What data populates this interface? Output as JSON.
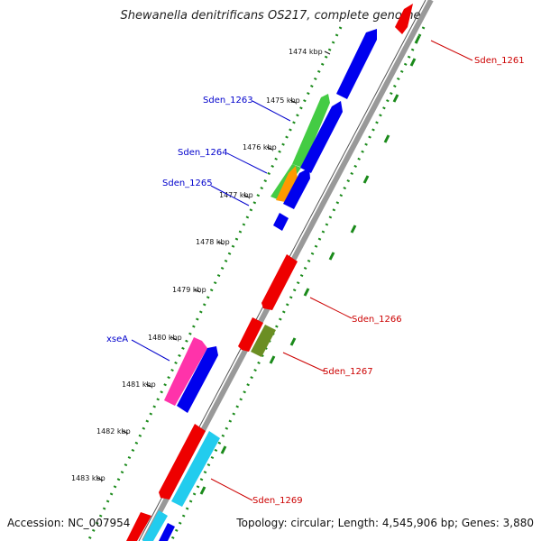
{
  "title": "Shewanella denitrificans OS217, complete genome",
  "footer": {
    "accession": "Accession: NC_007954",
    "summary": "Topology: circular; Length: 4,545,906 bp; Genes: 3,880"
  },
  "ticks": [
    "1474 kbp",
    "1475 kbp",
    "1476 kbp",
    "1477 kbp",
    "1478 kbp",
    "1479 kbp",
    "1480 kbp",
    "1481 kbp",
    "1482 kbp",
    "1483 kbp"
  ],
  "genes_forward_labels": [
    "Sden_1263",
    "Sden_1264",
    "Sden_1265",
    "xseA"
  ],
  "genes_reverse_labels": [
    "Sden_1261",
    "Sden_1266",
    "Sden_1267",
    "Sden_1269"
  ],
  "colors": {
    "forward_label": "#0000cc",
    "reverse_label": "#cc0000",
    "backbone": "#999999",
    "gc_dots": "#1a8a1a",
    "cds_blue": "#0000ee",
    "cds_red": "#ee0000",
    "cds_green": "#44cc44",
    "cds_orange": "#ff9900",
    "cds_magenta": "#ff33aa",
    "cds_olive": "#6b8e23",
    "cds_cyan": "#22ccee"
  }
}
